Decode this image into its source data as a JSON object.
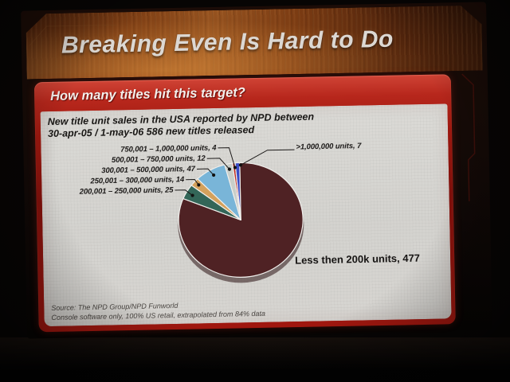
{
  "slide": {
    "title": "Breaking Even Is Hard to Do",
    "question_bar": "How many titles hit this target?",
    "description_lines": [
      "New title unit sales in the USA reported by NPD between",
      "30-apr-05 / 1-may-06 586 new titles released"
    ],
    "source_lines": [
      "Source: The NPD Group/NPD Funworld",
      "Console software only, 100% US retail, extrapolated from 84% data"
    ],
    "accent_colors": {
      "panel_red": "#a1170f",
      "header_orange": "#9a5722",
      "body_gray": "#d6d5d1",
      "title_text": "#dcd8d3"
    }
  },
  "chart_data": {
    "type": "pie",
    "title": "",
    "start_angle_deg": 0,
    "direction": "clockwise",
    "legend_position": "callouts-with-leader-lines",
    "total": 586,
    "slices": [
      {
        "label": "Less then 200k units",
        "value": 477,
        "color": "#4f2224"
      },
      {
        "label": "200,001 – 250,000 units",
        "value": 25,
        "color": "#336658"
      },
      {
        "label": "250,001 – 300,000 units",
        "value": 14,
        "color": "#d4a15c"
      },
      {
        "label": "300,001 – 500,000 units",
        "value": 47,
        "color": "#79b5d8"
      },
      {
        "label": "500,001 – 750,000 units",
        "value": 12,
        "color": "#c9cec9"
      },
      {
        "label": "750,001 – 1,000,000 units",
        "value": 4,
        "color": "#bf2a20"
      },
      {
        "label": ">1,000,000 units",
        "value": 7,
        "color": "#3a4cc6"
      }
    ]
  }
}
